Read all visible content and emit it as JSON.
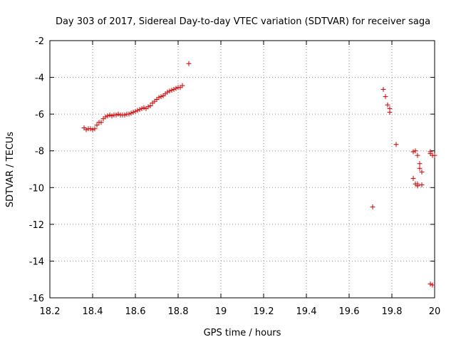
{
  "chart_data": {
    "type": "scatter",
    "title": "Day 303 of 2017, Sidereal Day-to-day VTEC variation (SDTVAR) for receiver saga",
    "xlabel": "GPS time / hours",
    "ylabel": "SDTVAR / TECUs",
    "xlim": [
      18.2,
      20
    ],
    "ylim": [
      -16,
      -2
    ],
    "x_ticks": [
      18.2,
      18.4,
      18.6,
      18.8,
      19,
      19.2,
      19.4,
      19.6,
      19.8,
      20
    ],
    "x_tick_labels": [
      "18.2",
      "18.4",
      "18.6",
      "18.8",
      "19",
      "19.2",
      "19.4",
      "19.6",
      "19.8",
      "20"
    ],
    "y_ticks": [
      -16,
      -14,
      -12,
      -10,
      -8,
      -6,
      -4,
      -2
    ],
    "y_tick_labels": [
      "-16",
      "-14",
      "-12",
      "-10",
      "-8",
      "-6",
      "-4",
      "-2"
    ],
    "grid": true,
    "marker": "+",
    "color": "#cc0000",
    "series": [
      {
        "name": "SDTVAR",
        "x": [
          18.36,
          18.37,
          18.38,
          18.39,
          18.4,
          18.41,
          18.42,
          18.43,
          18.44,
          18.45,
          18.46,
          18.47,
          18.48,
          18.49,
          18.5,
          18.51,
          18.52,
          18.53,
          18.54,
          18.55,
          18.56,
          18.57,
          18.58,
          18.59,
          18.6,
          18.61,
          18.62,
          18.63,
          18.64,
          18.65,
          18.66,
          18.67,
          18.68,
          18.69,
          18.7,
          18.71,
          18.72,
          18.73,
          18.74,
          18.75,
          18.76,
          18.77,
          18.78,
          18.79,
          18.8,
          18.81,
          18.82,
          18.85,
          19.71,
          19.76,
          19.77,
          19.78,
          19.79,
          19.79,
          19.82,
          19.9,
          19.91,
          19.92,
          19.9,
          19.91,
          19.92,
          19.92,
          19.93,
          19.93,
          19.94,
          19.94,
          19.92,
          19.98,
          19.98,
          19.99,
          20.0,
          19.98,
          19.99
        ],
        "y": [
          -6.75,
          -6.85,
          -6.8,
          -6.8,
          -6.85,
          -6.8,
          -6.6,
          -6.45,
          -6.45,
          -6.25,
          -6.15,
          -6.1,
          -6.05,
          -6.1,
          -6.05,
          -6.05,
          -6.0,
          -6.05,
          -6.05,
          -6.05,
          -6.0,
          -6.0,
          -5.95,
          -5.9,
          -5.85,
          -5.8,
          -5.75,
          -5.7,
          -5.65,
          -5.7,
          -5.6,
          -5.55,
          -5.4,
          -5.3,
          -5.2,
          -5.1,
          -5.05,
          -5.0,
          -4.9,
          -4.8,
          -4.75,
          -4.7,
          -4.65,
          -4.6,
          -4.55,
          -4.55,
          -4.45,
          -3.25,
          -11.05,
          -4.65,
          -5.05,
          -5.5,
          -5.7,
          -5.9,
          -7.65,
          -8.05,
          -8.0,
          -8.25,
          -9.5,
          -9.8,
          -9.9,
          -9.9,
          -8.7,
          -8.95,
          -9.15,
          -9.85,
          -9.8,
          -8.05,
          -8.15,
          -8.25,
          -8.25,
          -15.25,
          -15.3
        ]
      }
    ]
  }
}
